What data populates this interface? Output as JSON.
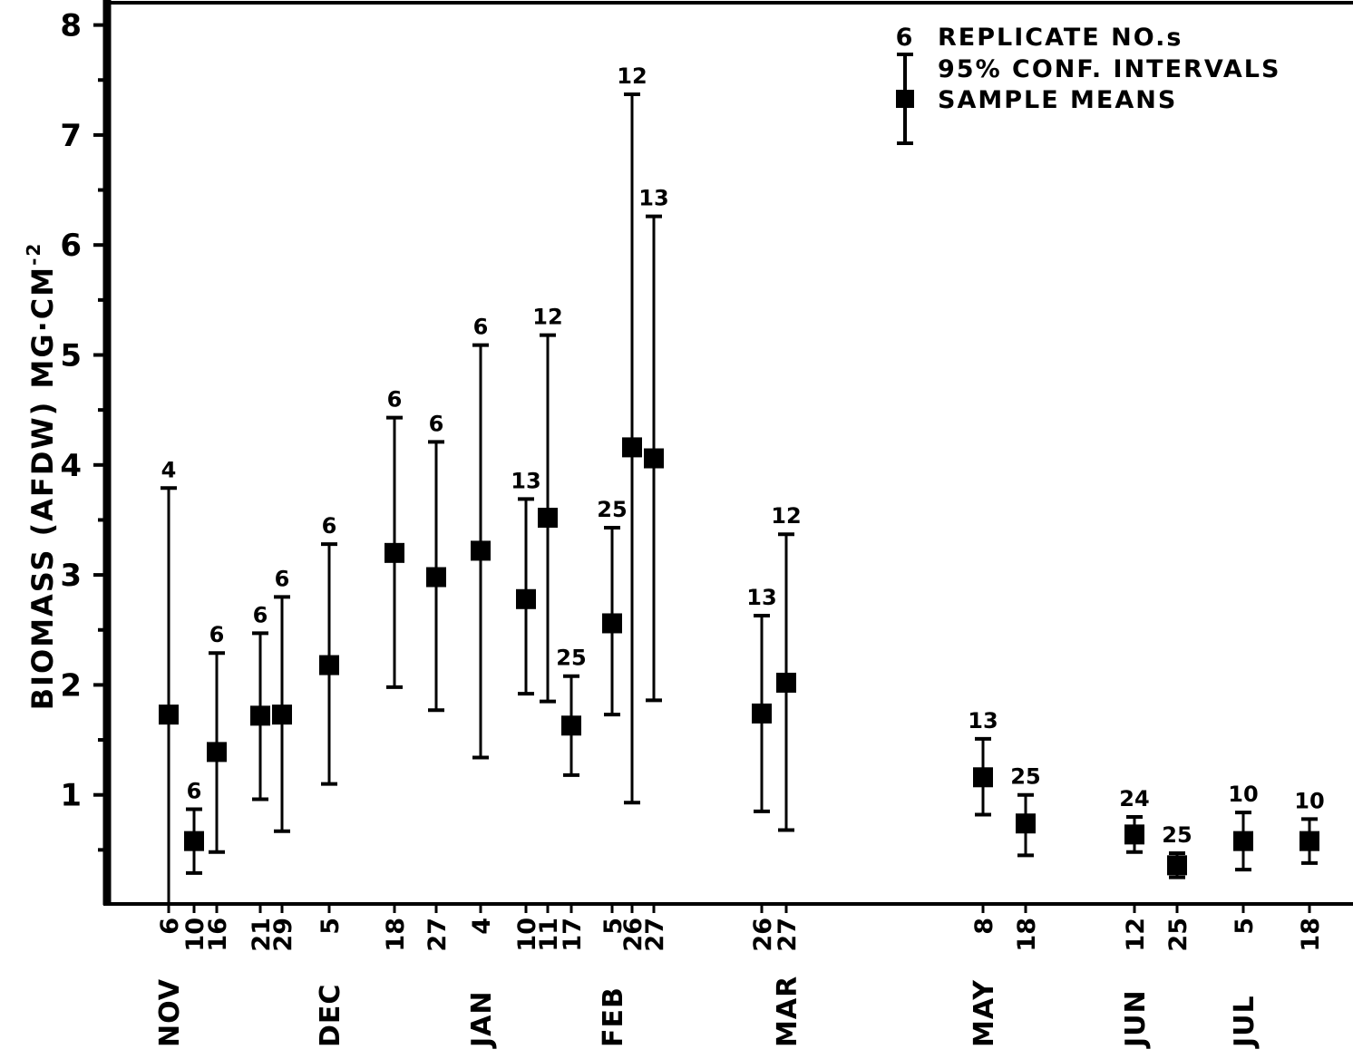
{
  "chart_data": {
    "type": "scatter",
    "ylabel": "BIOMASS (AFDW)  MG·CM",
    "ylabel_sup": "-2",
    "ylim": [
      0,
      8
    ],
    "yticks": [
      1,
      2,
      3,
      4,
      5,
      6,
      7,
      8
    ],
    "legend": {
      "count_example": "6",
      "count_text": "REPLICATE   NO.s",
      "ci_text": "95% CONF. INTERVALS",
      "mean_text": "SAMPLE  MEANS"
    },
    "points": [
      {
        "month": "NOV",
        "day": "6",
        "n": "4",
        "mean": 1.73,
        "lo": 0.0,
        "hi": 3.79
      },
      {
        "month": "NOV",
        "day": "10",
        "n": "6",
        "mean": 0.58,
        "lo": 0.29,
        "hi": 0.87
      },
      {
        "month": "NOV",
        "day": "16",
        "n": "6",
        "mean": 1.39,
        "lo": 0.48,
        "hi": 2.29
      },
      {
        "month": "NOV",
        "day": "21",
        "n": "6",
        "mean": 1.72,
        "lo": 0.96,
        "hi": 2.47
      },
      {
        "month": "NOV",
        "day": "29",
        "n": "6",
        "mean": 1.73,
        "lo": 0.67,
        "hi": 2.8
      },
      {
        "month": "DEC",
        "day": "5",
        "n": "6",
        "mean": 2.18,
        "lo": 1.1,
        "hi": 3.28
      },
      {
        "month": "DEC",
        "day": "18",
        "n": "6",
        "mean": 3.2,
        "lo": 1.98,
        "hi": 4.43
      },
      {
        "month": "DEC",
        "day": "27",
        "n": "6",
        "mean": 2.98,
        "lo": 1.77,
        "hi": 4.21
      },
      {
        "month": "JAN",
        "day": "4",
        "n": "6",
        "mean": 3.22,
        "lo": 1.34,
        "hi": 5.09
      },
      {
        "month": "JAN",
        "day": "10",
        "n": "13",
        "mean": 2.78,
        "lo": 1.92,
        "hi": 3.69
      },
      {
        "month": "JAN",
        "day": "11",
        "n": "12",
        "mean": 3.52,
        "lo": 1.85,
        "hi": 5.18
      },
      {
        "month": "JAN",
        "day": "17",
        "n": "25",
        "mean": 1.63,
        "lo": 1.18,
        "hi": 2.08
      },
      {
        "month": "FEB",
        "day": "5",
        "n": "25",
        "mean": 2.56,
        "lo": 1.73,
        "hi": 3.43
      },
      {
        "month": "FEB",
        "day": "26",
        "n": "12",
        "mean": 4.16,
        "lo": 0.93,
        "hi": 7.37
      },
      {
        "month": "FEB",
        "day": "27",
        "n": "13",
        "mean": 4.06,
        "lo": 1.86,
        "hi": 6.26
      },
      {
        "month": "MAR",
        "day": "26",
        "n": "13",
        "mean": 1.74,
        "lo": 0.85,
        "hi": 2.63
      },
      {
        "month": "MAR",
        "day": "27",
        "n": "12",
        "mean": 2.02,
        "lo": 0.68,
        "hi": 3.37
      },
      {
        "month": "MAY",
        "day": "8",
        "n": "13",
        "mean": 1.16,
        "lo": 0.82,
        "hi": 1.51
      },
      {
        "month": "MAY",
        "day": "18",
        "n": "25",
        "mean": 0.74,
        "lo": 0.45,
        "hi": 1.0
      },
      {
        "month": "JUN",
        "day": "12",
        "n": "24",
        "mean": 0.64,
        "lo": 0.48,
        "hi": 0.8
      },
      {
        "month": "JUN",
        "day": "25",
        "n": "25",
        "mean": 0.36,
        "lo": 0.25,
        "hi": 0.47
      },
      {
        "month": "JUL",
        "day": "5",
        "n": "10",
        "mean": 0.58,
        "lo": 0.32,
        "hi": 0.84
      },
      {
        "month": "JUL",
        "day": "18",
        "n": "10",
        "mean": 0.58,
        "lo": 0.38,
        "hi": 0.78
      }
    ],
    "months": [
      "NOV",
      "DEC",
      "JAN",
      "FEB",
      "MAR",
      "MAY",
      "JUN",
      "JUL"
    ]
  }
}
